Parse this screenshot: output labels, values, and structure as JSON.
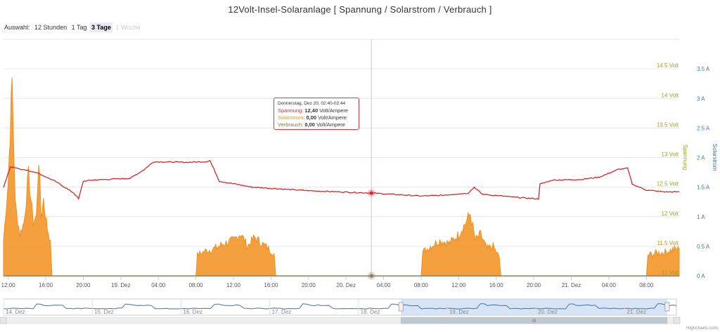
{
  "title": "12Volt-Insel-Solaranlage [ Spannung / Solarstrom / Verbrauch ]",
  "range_selector": {
    "label": "Auswahl:",
    "buttons": [
      {
        "label": "12 Stunden",
        "state": "normal"
      },
      {
        "label": "1 Tag",
        "state": "normal"
      },
      {
        "label": "3 Tage",
        "state": "selected"
      },
      {
        "label": "1 Woche",
        "state": "disabled"
      }
    ]
  },
  "tooltip": {
    "header": "Donnerstag, Dez 20, 02:40-02:44",
    "rows": [
      {
        "name": "Spannung",
        "value": "12,40",
        "unit": "Volt/Ampere",
        "color": "#d62728"
      },
      {
        "name": "Solarstrom",
        "value": "0,00",
        "unit": "Volt/Ampere",
        "color": "#f28f1c"
      },
      {
        "name": "Verbrauch",
        "value": "0,00",
        "unit": "Volt/Ampere",
        "color": "#7a7a46"
      }
    ]
  },
  "navigator": {
    "labels": [
      "14. Dez",
      "15. Dez",
      "16. Dez",
      "17. Dez",
      "18. Dez",
      "19. Dez",
      "20. Dez",
      "21. Dez"
    ],
    "scroll_label": "III"
  },
  "credits": "Highcharts.com",
  "chart_data": {
    "type": "line",
    "x_axis": {
      "type": "datetime",
      "tick_labels": [
        "12:00",
        "16:00",
        "20:00",
        "19. Dez",
        "04:00",
        "08:00",
        "12:00",
        "16:00",
        "20:00",
        "20. Dez",
        "04:00",
        "08:00",
        "12:00",
        "16:00",
        "20:00",
        "21. Dez",
        "04:00",
        "08:00"
      ],
      "range": [
        "2018-12-18 11:30",
        "2018-12-21 11:30"
      ]
    },
    "y_axes": [
      {
        "title": "Spannung",
        "unit": "Volt",
        "ylim": [
          11.0,
          15.0
        ],
        "tick_labels": [
          "11 Volt",
          "11.5 Volt",
          "12 Volt",
          "12.5 Volt",
          "13 Volt",
          "13.5 Volt",
          "14 Volt",
          "14.5 Volt"
        ],
        "color": "#a0a01e"
      },
      {
        "title": "Solarstrom",
        "unit": "A",
        "ylim": [
          0,
          4.0
        ],
        "tick_labels": [
          "0 A",
          "0.5 A",
          "1 A",
          "1.5 A",
          "2 A",
          "2.5 A",
          "3 A",
          "3.5 A"
        ],
        "color": "#4572a7"
      }
    ],
    "grid": true,
    "series": [
      {
        "name": "Spannung",
        "axis": 0,
        "color": "#d62728",
        "x": [
          "18. Dez 11:30",
          "18. Dez 12:15",
          "18. Dez 13:30",
          "18. Dez 15:00",
          "18. Dez 17:00",
          "18. Dez 19:00",
          "18. Dez 19:30",
          "18. Dez 20:00",
          "18. Dez 21:00",
          "19. Dez 01:00",
          "19. Dez 02:30",
          "19. Dez 03:30",
          "19. Dez 07:00",
          "19. Dez 09:00",
          "19. Dez 09:30",
          "19. Dez 10:30",
          "19. Dez 14:00",
          "19. Dez 20:00",
          "20. Dez 02:42",
          "20. Dez 08:00",
          "20. Dez 10:00",
          "20. Dez 13:00",
          "20. Dez 13:40",
          "20. Dez 14:30",
          "20. Dez 18:00",
          "20. Dez 20:30",
          "20. Dez 20:40",
          "20. Dez 22:00",
          "21. Dez 01:00",
          "21. Dez 03:00",
          "21. Dez 05:00",
          "21. Dez 06:00",
          "21. Dez 06:30",
          "21. Dez 08:00",
          "21. Dez 10:00",
          "21. Dez 11:30"
        ],
        "y": [
          12.5,
          12.85,
          12.8,
          12.75,
          12.6,
          12.4,
          12.3,
          12.6,
          12.62,
          12.65,
          12.8,
          12.93,
          12.92,
          12.93,
          12.95,
          12.6,
          12.5,
          12.44,
          12.4,
          12.35,
          12.36,
          12.4,
          12.5,
          12.38,
          12.33,
          12.3,
          12.55,
          12.62,
          12.63,
          12.67,
          12.8,
          12.82,
          12.55,
          12.45,
          12.42,
          12.42
        ]
      },
      {
        "name": "Solarstrom",
        "axis": 1,
        "color": "#f28f1c",
        "x": [
          "18. Dez 11:30",
          "18. Dez 12:00",
          "18. Dez 12:25",
          "18. Dez 12:45",
          "18. Dez 13:15",
          "18. Dez 13:40",
          "18. Dez 14:10",
          "18. Dez 14:40",
          "18. Dez 15:00",
          "18. Dez 15:15",
          "18. Dez 15:30",
          "18. Dez 15:45",
          "18. Dez 16:10",
          "18. Dez 16:30",
          "18. Dez 16:40",
          "19. Dez 08:00",
          "19. Dez 08:10",
          "19. Dez 09:00",
          "19. Dez 10:00",
          "19. Dez 11:00",
          "19. Dez 12:00",
          "19. Dez 12:45",
          "19. Dez 13:30",
          "19. Dez 14:15",
          "19. Dez 15:00",
          "19. Dez 15:50",
          "19. Dez 16:20",
          "19. Dez 16:30",
          "20. Dez 08:00",
          "20. Dez 08:10",
          "20. Dez 09:00",
          "20. Dez 10:00",
          "20. Dez 11:00",
          "20. Dez 12:00",
          "20. Dez 12:45",
          "20. Dez 13:15",
          "20. Dez 13:45",
          "20. Dez 14:20",
          "20. Dez 15:00",
          "20. Dez 15:40",
          "20. Dez 16:20",
          "20. Dez 16:30",
          "21. Dez 08:00",
          "21. Dez 08:10",
          "21. Dez 09:00",
          "21. Dez 10:00",
          "21. Dez 11:00",
          "21. Dez 11:30"
        ],
        "y": [
          0.6,
          1.6,
          3.3,
          1.2,
          0.7,
          0.9,
          1.7,
          0.9,
          1.0,
          2.0,
          1.0,
          1.3,
          0.8,
          0.6,
          0,
          0,
          0.35,
          0.42,
          0.46,
          0.55,
          0.6,
          0.72,
          0.5,
          0.65,
          0.55,
          0.45,
          0.38,
          0,
          0,
          0.4,
          0.5,
          0.6,
          0.55,
          0.7,
          0.9,
          1.05,
          0.6,
          0.7,
          0.45,
          0.5,
          0.3,
          0,
          0,
          0.35,
          0.38,
          0.4,
          0.45,
          0.45
        ]
      },
      {
        "name": "Verbrauch",
        "axis": 1,
        "color": "#7a7a46",
        "x": [
          "18. Dez 11:30",
          "21. Dez 11:30"
        ],
        "y": [
          0,
          0
        ]
      }
    ],
    "crosshair_at": "20. Dez 02:42"
  }
}
